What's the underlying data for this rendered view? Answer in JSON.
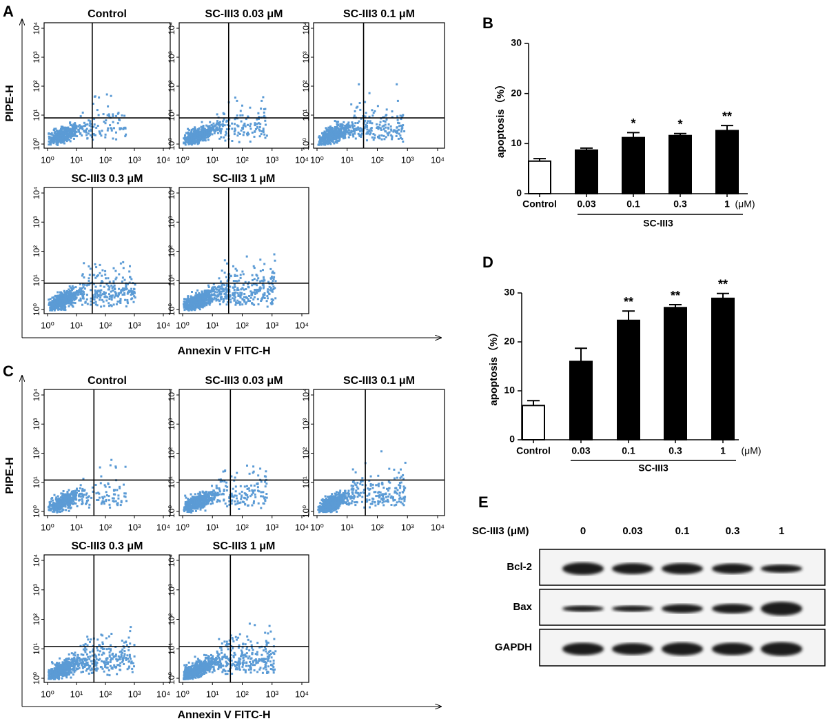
{
  "flow_panels": [
    {
      "label": "A",
      "y_label": "PIPE-H",
      "x_label": "Annexin V FITC-H",
      "scale": "log",
      "gate": {
        "x": 35,
        "y": 8
      },
      "ticks": [
        {
          "value": 1,
          "label": "10⁰"
        },
        {
          "value": 10,
          "label": "10¹"
        },
        {
          "value": 100,
          "label": "10²"
        },
        {
          "value": 1000,
          "label": "10³"
        },
        {
          "value": 10000,
          "label": "10⁴"
        }
      ],
      "plots": [
        "Control",
        "SC-III3 0.03 μM",
        "SC-III3 0.1 μM",
        "SC-III3 0.3 μM",
        "SC-III3 1 μM"
      ]
    },
    {
      "label": "C",
      "y_label": "PIPE-H",
      "x_label": "Annexin V FITC-H",
      "scale": "log",
      "gate": {
        "x": 40,
        "y": 12
      },
      "ticks": [
        {
          "value": 1,
          "label": "10⁰"
        },
        {
          "value": 10,
          "label": "10¹"
        },
        {
          "value": 100,
          "label": "10²"
        },
        {
          "value": 1000,
          "label": "10³"
        },
        {
          "value": 10000,
          "label": "10⁴"
        }
      ],
      "plots": [
        "Control",
        "SC-III3 0.03 μM",
        "SC-III3 0.1 μM",
        "SC-III3 0.3 μM",
        "SC-III3 1 μM"
      ]
    }
  ],
  "chart_data": [
    {
      "type": "bar",
      "panel_label": "B",
      "y_label": "apoptosis（%）",
      "categories": [
        "Control",
        "0.03",
        "0.1",
        "0.3",
        "1"
      ],
      "unit_label": "(μM)",
      "group_label": "SC-III3",
      "values": [
        6.5,
        8.7,
        11.2,
        11.6,
        12.6
      ],
      "errors": [
        0.5,
        0.4,
        1.0,
        0.4,
        1.0
      ],
      "colors": [
        "#ffffff",
        "#000000",
        "#000000",
        "#000000",
        "#000000"
      ],
      "ylim": [
        0,
        30
      ],
      "yticks": [
        0,
        10,
        20,
        30
      ],
      "annotations": [
        {
          "category": "0.1",
          "text": "*"
        },
        {
          "category": "0.3",
          "text": "*"
        },
        {
          "category": "1",
          "text": "**"
        }
      ]
    },
    {
      "type": "bar",
      "panel_label": "D",
      "y_label": "apoptosis（%）",
      "categories": [
        "Control",
        "0.03",
        "0.1",
        "0.3",
        "1"
      ],
      "unit_label": "(μM)",
      "group_label": "SC-III3",
      "values": [
        7.0,
        16.0,
        24.4,
        27.0,
        28.9
      ],
      "errors": [
        1.0,
        2.7,
        1.9,
        0.6,
        1.0
      ],
      "colors": [
        "#ffffff",
        "#000000",
        "#000000",
        "#000000",
        "#000000"
      ],
      "ylim": [
        0,
        30
      ],
      "yticks": [
        0,
        10,
        20,
        30
      ],
      "annotations": [
        {
          "category": "0.1",
          "text": "**"
        },
        {
          "category": "0.3",
          "text": "**"
        },
        {
          "category": "1",
          "text": "**"
        }
      ]
    }
  ],
  "western_blot": {
    "label": "E",
    "header": "SC-III3 (μM)",
    "lanes": [
      "0",
      "0.03",
      "0.1",
      "0.3",
      "1"
    ],
    "rows": [
      "Bcl-2",
      "Bax",
      "GAPDH"
    ]
  }
}
